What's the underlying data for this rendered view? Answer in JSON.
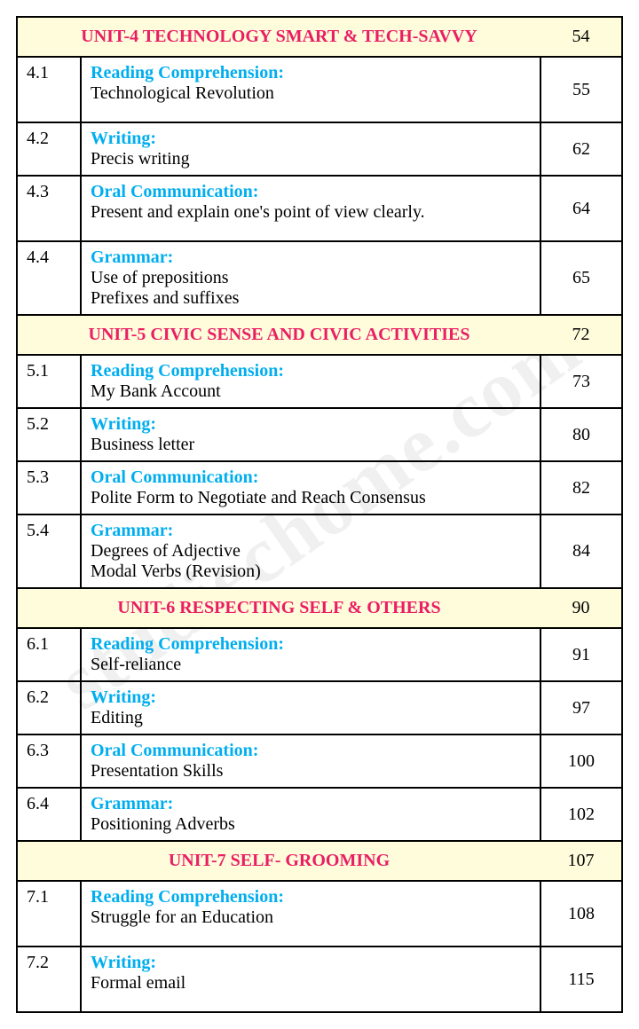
{
  "watermark": "studiechome.com",
  "units": [
    {
      "title": "UNIT-4 TECHNOLOGY SMART & TECH-SAVVY",
      "page": "54",
      "rows": [
        {
          "num": "4.1",
          "heading": "Reading Comprehension:",
          "lines": [
            "Technological Revolution"
          ],
          "page": "55",
          "pad": true
        },
        {
          "num": "4.2",
          "heading": "Writing:",
          "lines": [
            "Precis writing"
          ],
          "page": "62"
        },
        {
          "num": "4.3",
          "heading": "Oral Communication:",
          "lines": [
            "Present and explain one's point of view clearly."
          ],
          "page": "64",
          "pad": true
        },
        {
          "num": "4.4",
          "heading": "Grammar:",
          "lines": [
            "Use of prepositions",
            "Prefixes and suffixes"
          ],
          "page": "65"
        }
      ]
    },
    {
      "title": "UNIT-5 CIVIC SENSE AND CIVIC ACTIVITIES",
      "page": "72",
      "rows": [
        {
          "num": "5.1",
          "heading": "Reading Comprehension:",
          "lines": [
            "My Bank Account"
          ],
          "page": "73"
        },
        {
          "num": "5.2",
          "heading": "Writing:",
          "lines": [
            "Business letter"
          ],
          "page": "80"
        },
        {
          "num": "5.3",
          "heading": "Oral Communication:",
          "lines": [
            "Polite Form to Negotiate and Reach Consensus"
          ],
          "page": "82"
        },
        {
          "num": "5.4",
          "heading": "Grammar:",
          "lines": [
            "Degrees of Adjective",
            "Modal Verbs (Revision)"
          ],
          "page": "84"
        }
      ]
    },
    {
      "title": "UNIT-6 RESPECTING SELF & OTHERS",
      "page": "90",
      "rows": [
        {
          "num": "6.1",
          "heading": "Reading Comprehension:",
          "lines": [
            "Self-reliance"
          ],
          "page": "91"
        },
        {
          "num": "6.2",
          "heading": "Writing:",
          "lines": [
            "Editing"
          ],
          "page": "97"
        },
        {
          "num": "6.3",
          "heading": "Oral Communication:",
          "lines": [
            "Presentation Skills"
          ],
          "page": "100"
        },
        {
          "num": "6.4",
          "heading": "Grammar:",
          "lines": [
            "Positioning Adverbs"
          ],
          "page": "102"
        }
      ]
    },
    {
      "title": "UNIT-7 SELF- GROOMING",
      "page": "107",
      "rows": [
        {
          "num": "7.1",
          "heading": "Reading Comprehension:",
          "lines": [
            "Struggle for an Education"
          ],
          "page": "108",
          "pad": true
        },
        {
          "num": "7.2",
          "heading": "Writing:",
          "lines": [
            "Formal email"
          ],
          "page": "115",
          "pad": true
        }
      ]
    }
  ]
}
